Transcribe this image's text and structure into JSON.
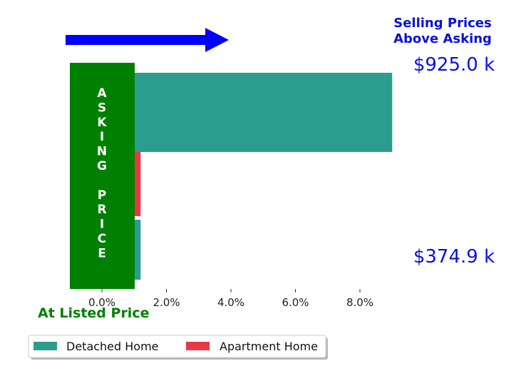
{
  "chart_data": {
    "type": "bar",
    "orientation": "horizontal",
    "x_ticks": [
      "0.0%",
      "2.0%",
      "4.0%",
      "6.0%",
      "8.0%"
    ],
    "x_tick_values": [
      0,
      2,
      4,
      6,
      8
    ],
    "xlim": [
      -1.0,
      9.5
    ],
    "series": [
      {
        "name": "Detached Home",
        "color": "#2a9d8f",
        "bars": [
          {
            "value": 1.2
          },
          {
            "value": 9.0
          }
        ]
      },
      {
        "name": "Apartment Home",
        "color": "#e63946",
        "bars": [
          {
            "value": 1.2
          }
        ]
      }
    ],
    "price_labels": [
      "$925.0 k",
      "$374.9 k"
    ],
    "price_color": "#0a10e0",
    "asking_block": {
      "letters": [
        "A",
        "S",
        "K",
        "I",
        "N",
        "G",
        "",
        "P",
        "R",
        "I",
        "C",
        "E"
      ],
      "color": "#008000"
    },
    "title_lines": [
      "Selling Prices",
      "Above Asking"
    ],
    "title_color": "#0a10e0",
    "arrow_color": "#0000ff",
    "bottom_label": "At Listed Price",
    "bottom_label_color": "#008000",
    "legend": {
      "placement": "bottom-left",
      "entries": [
        "Detached Home",
        "Apartment Home"
      ]
    }
  }
}
